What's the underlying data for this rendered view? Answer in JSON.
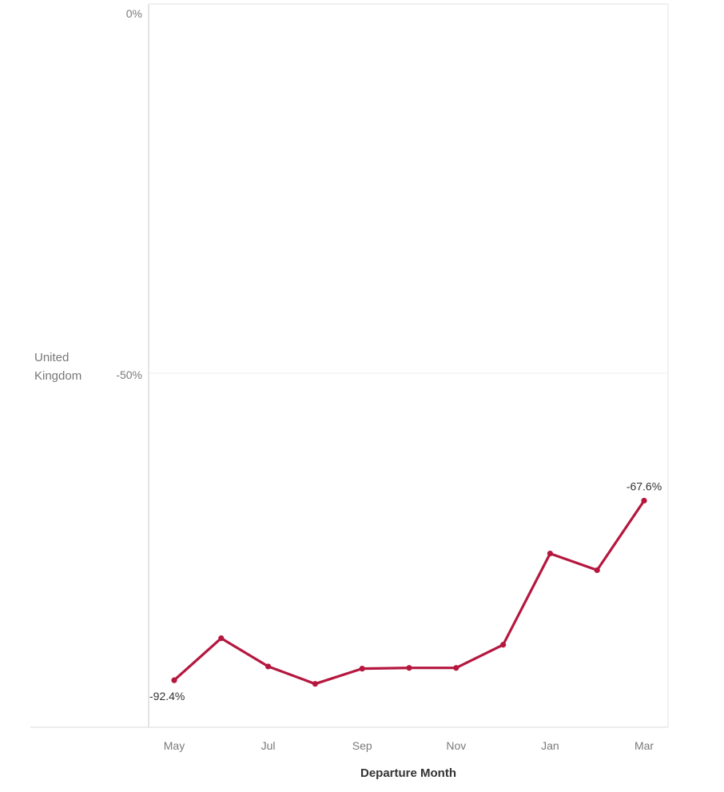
{
  "chart_data": {
    "type": "line",
    "row_label": [
      "United",
      "Kingdom"
    ],
    "xlabel": "Departure Month",
    "categories": [
      "May",
      "Jun",
      "Jul",
      "Aug",
      "Sep",
      "Oct",
      "Nov",
      "Dec",
      "Jan",
      "Feb",
      "Mar"
    ],
    "x_tick_labels": [
      "May",
      "Jul",
      "Sep",
      "Nov",
      "Jan",
      "Mar"
    ],
    "y_tick_labels": [
      "0%",
      "-50%"
    ],
    "ylim": [
      -97,
      0
    ],
    "series": [
      {
        "values": [
          -92.4,
          -86.6,
          -90.5,
          -92.9,
          -90.8,
          -90.7,
          -90.7,
          -87.5,
          -74.9,
          -77.2,
          -67.6
        ]
      }
    ],
    "data_labels": [
      {
        "index": 0,
        "text": "-92.4%"
      },
      {
        "index": 10,
        "text": "-67.6%"
      }
    ],
    "line_color": "#b5173f",
    "grid": true
  }
}
